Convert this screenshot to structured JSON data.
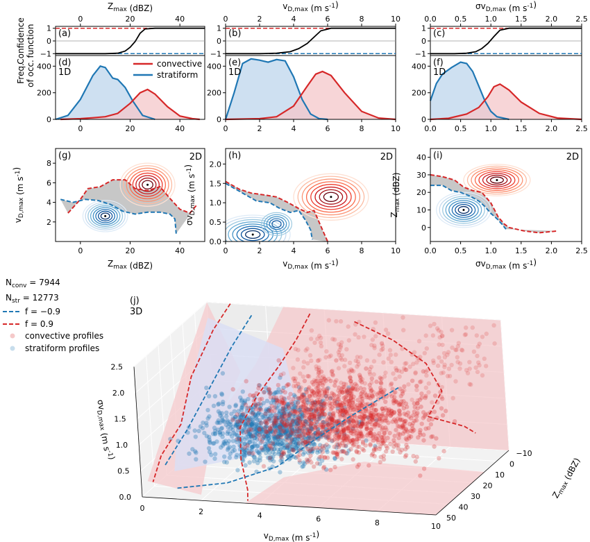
{
  "chart_data": [
    {
      "type": "line",
      "panel": "a",
      "label": "(a)",
      "xlabel_top": "Z_max (dBZ)",
      "xlim": [
        -10,
        50
      ],
      "xticks_top": [
        "0",
        "20",
        "40"
      ],
      "ylabel": "Confidence function",
      "ylim": [
        -1.15,
        1.15
      ],
      "yticks": [
        "1",
        "0",
        "−1"
      ],
      "series": [
        {
          "role": "confidence",
          "x": [
            -10,
            10,
            15,
            18,
            20,
            22,
            24,
            26,
            30,
            50
          ],
          "y": [
            -1,
            -1,
            -0.97,
            -0.8,
            -0.5,
            -0.05,
            0.6,
            0.95,
            1,
            1
          ]
        }
      ]
    },
    {
      "type": "line",
      "panel": "b",
      "label": "(b)",
      "xlabel_top": "v_D,max (m s^-1)",
      "xlim": [
        0,
        10
      ],
      "xticks_top": [
        "0",
        "2",
        "4",
        "6",
        "8",
        "10"
      ],
      "ylim": [
        -1.15,
        1.15
      ],
      "yticks": [
        "1",
        "0",
        "−1"
      ],
      "series": [
        {
          "role": "confidence",
          "x": [
            0,
            2,
            3,
            3.8,
            4.3,
            4.8,
            5.2,
            5.6,
            6.2,
            10
          ],
          "y": [
            -1,
            -1,
            -0.97,
            -0.85,
            -0.6,
            -0.2,
            0.3,
            0.8,
            1,
            1
          ]
        }
      ]
    },
    {
      "type": "line",
      "panel": "c",
      "label": "(c)",
      "xlabel_top": "σv_D,max (m s^-1)",
      "xlim": [
        0,
        2.5
      ],
      "xticks_top": [
        "0.0",
        "0.5",
        "1.0",
        "1.5",
        "2.0",
        "2.5"
      ],
      "ylim": [
        -1.15,
        1.15
      ],
      "yticks": [
        "1",
        "0",
        "−1"
      ],
      "series": [
        {
          "role": "confidence",
          "x": [
            0,
            0.4,
            0.6,
            0.75,
            0.85,
            0.95,
            1.05,
            1.15,
            1.3,
            2.5
          ],
          "y": [
            -1,
            -1,
            -0.97,
            -0.85,
            -0.6,
            -0.2,
            0.35,
            0.85,
            1,
            1
          ]
        }
      ]
    },
    {
      "type": "area",
      "panel": "d",
      "label": "(d)",
      "sublabel": "1D",
      "xlim": [
        -10,
        50
      ],
      "xticks": [
        "0",
        "20",
        "40"
      ],
      "ylabel": "Freq. of occ.",
      "ylim": [
        0,
        480
      ],
      "yticks": [
        "0",
        "200",
        "400"
      ],
      "legend_position": "top-right",
      "series": [
        {
          "name": "convective",
          "x": [
            -8,
            0,
            5,
            10,
            15,
            20,
            24,
            27,
            30,
            35,
            40,
            45,
            48
          ],
          "y": [
            0,
            5,
            12,
            20,
            45,
            120,
            200,
            225,
            190,
            95,
            25,
            5,
            0
          ]
        },
        {
          "name": "stratiform",
          "x": [
            -10,
            -5,
            0,
            5,
            8,
            10,
            13,
            15,
            18,
            21,
            25,
            30
          ],
          "y": [
            0,
            30,
            150,
            330,
            400,
            390,
            310,
            300,
            240,
            140,
            30,
            0
          ]
        }
      ]
    },
    {
      "type": "area",
      "panel": "e",
      "label": "(e)",
      "sublabel": "1D",
      "xlim": [
        0,
        10
      ],
      "xticks": [
        "0",
        "2",
        "4",
        "6",
        "8",
        "10"
      ],
      "ylim": [
        0,
        480
      ],
      "yticks": [
        "0",
        "200",
        "400"
      ],
      "series": [
        {
          "name": "convective",
          "x": [
            0,
            2,
            3,
            4,
            4.8,
            5.3,
            5.7,
            6.2,
            7,
            8,
            9,
            10
          ],
          "y": [
            0,
            5,
            20,
            100,
            250,
            340,
            360,
            330,
            200,
            60,
            10,
            0
          ]
        },
        {
          "name": "stratiform",
          "x": [
            0,
            0.5,
            1,
            1.5,
            2,
            2.5,
            3,
            3.5,
            4,
            4.5,
            5,
            5.5,
            6
          ],
          "y": [
            0,
            200,
            420,
            455,
            445,
            430,
            450,
            440,
            320,
            150,
            40,
            5,
            0
          ]
        }
      ]
    },
    {
      "type": "area",
      "panel": "f",
      "label": "(f)",
      "sublabel": "1D",
      "xlim": [
        0,
        2.5
      ],
      "xticks": [
        "0.0",
        "0.5",
        "1.0",
        "1.5",
        "2.0",
        "2.5"
      ],
      "ylim": [
        0,
        480
      ],
      "yticks": [
        "0",
        "200",
        "400"
      ],
      "series": [
        {
          "name": "convective",
          "x": [
            0,
            0.3,
            0.6,
            0.8,
            0.95,
            1.05,
            1.15,
            1.3,
            1.5,
            1.8,
            2.1,
            2.5
          ],
          "y": [
            0,
            8,
            40,
            90,
            170,
            245,
            265,
            220,
            130,
            45,
            10,
            0
          ]
        },
        {
          "name": "stratiform",
          "x": [
            0,
            0.1,
            0.2,
            0.35,
            0.5,
            0.6,
            0.7,
            0.8,
            0.9,
            1.0,
            1.1,
            1.3
          ],
          "y": [
            140,
            270,
            340,
            390,
            430,
            420,
            360,
            250,
            140,
            60,
            20,
            0
          ]
        }
      ]
    },
    {
      "type": "scatter",
      "panel": "g",
      "label": "(g)",
      "sublabel": "2D",
      "xlabel": "Z_max (dBZ)",
      "ylabel": "v_D,max (m s^-1)",
      "xlim": [
        -10,
        50
      ],
      "ylim": [
        0,
        9.5
      ],
      "xticks": [
        "0",
        "20",
        "40"
      ],
      "yticks": [
        "2",
        "4",
        "6",
        "8"
      ],
      "series": [
        {
          "role": "f = 0.9",
          "x": [
            -5,
            0,
            3,
            8,
            13,
            18,
            22,
            27,
            32,
            36,
            40,
            44,
            47
          ],
          "y": [
            2.9,
            4.3,
            5.4,
            5.6,
            6.3,
            6.3,
            5.4,
            5.2,
            5.6,
            4.4,
            3.3,
            2.9,
            3.8
          ]
        },
        {
          "role": "f = -0.9",
          "x": [
            -8,
            -3,
            2,
            7,
            12,
            17,
            22,
            27,
            32,
            36,
            38,
            38.5
          ],
          "y": [
            4.3,
            4.0,
            4.3,
            4.2,
            3.8,
            3.1,
            2.8,
            3.0,
            3.0,
            2.8,
            2.3,
            0.8
          ]
        }
      ]
    },
    {
      "type": "scatter",
      "panel": "h",
      "label": "(h)",
      "sublabel": "2D",
      "xlabel": "v_D,max (m s^-1)",
      "ylabel": "σv_D,max (m s^-1)",
      "xlim": [
        0,
        10
      ],
      "ylim": [
        0,
        2.4
      ],
      "xticks": [
        "0",
        "2",
        "4",
        "6",
        "8",
        "10"
      ],
      "yticks": [
        "0.0",
        "0.5",
        "1.0",
        "1.5",
        "2.0"
      ],
      "series": [
        {
          "role": "f = 0.9",
          "x": [
            0,
            0.8,
            1.5,
            2.3,
            3,
            3.7,
            4.3,
            4.8,
            5.2,
            5.4,
            5.7,
            6.0
          ],
          "y": [
            1.55,
            1.35,
            1.25,
            1.2,
            1.15,
            1.0,
            0.85,
            0.75,
            0.8,
            0.6,
            0.3,
            0.0
          ]
        },
        {
          "role": "f = -0.9",
          "x": [
            0,
            1,
            1.8,
            2.6,
            3.2,
            3.8,
            4.3,
            4.7,
            5.0,
            5.1
          ],
          "y": [
            1.5,
            1.25,
            1.05,
            1.0,
            0.85,
            0.75,
            0.8,
            0.55,
            0.3,
            0.05
          ]
        }
      ]
    },
    {
      "type": "scatter",
      "panel": "i",
      "label": "(i)",
      "sublabel": "2D",
      "xlabel": "σv_D,max (m s^-1)",
      "ylabel": "Z_max (dBZ)",
      "xlim": [
        0,
        2.5
      ],
      "ylim": [
        -8,
        45
      ],
      "xticks": [
        "0.0",
        "0.5",
        "1.0",
        "1.5",
        "2.0",
        "2.5"
      ],
      "yticks": [
        "0",
        "10",
        "20",
        "30",
        "40"
      ],
      "series": [
        {
          "role": "f = 0.9",
          "x": [
            0,
            0.2,
            0.4,
            0.55,
            0.7,
            0.85,
            1.0,
            1.12,
            1.22,
            1.3,
            1.55,
            1.8,
            2.1
          ],
          "y": [
            30,
            29,
            27,
            23,
            21,
            20,
            14,
            6,
            2,
            0,
            -2,
            -3,
            -2
          ]
        },
        {
          "role": "f = -0.9",
          "x": [
            0,
            0.2,
            0.35,
            0.5,
            0.65,
            0.8,
            0.9,
            1.0,
            1.1,
            1.18,
            1.25
          ],
          "y": [
            24,
            24,
            21,
            20,
            18,
            15,
            12,
            8,
            5,
            2,
            -1
          ]
        }
      ]
    },
    {
      "type": "scatter",
      "panel": "j",
      "label": "(j)",
      "sublabel": "3D",
      "xlabel": "v_D,max (m s^-1)",
      "ylabel": "Z_max (dBZ)",
      "zlabel": "σv_D,max (m s^-1)",
      "xlim": [
        0,
        10
      ],
      "ylim": [
        -10,
        50
      ],
      "zlim": [
        0,
        2.5
      ],
      "xticks": [
        "0",
        "2",
        "4",
        "6",
        "8",
        "10"
      ],
      "yticks": [
        "−10",
        "0",
        "10",
        "20",
        "30",
        "40",
        "50"
      ],
      "zticks": [
        "0.0",
        "0.5",
        "1.0",
        "1.5",
        "2.0",
        "2.5"
      ],
      "legend_position": "top-left",
      "series": [
        {
          "name": "convective profiles",
          "center": {
            "v": 6.0,
            "z": 28,
            "s": 1.25
          }
        },
        {
          "name": "stratiform profiles",
          "center": {
            "v": 3.0,
            "z": 12,
            "s": 0.6
          }
        }
      ]
    }
  ],
  "legend": {
    "n_conv": "N",
    "n_conv_sub": "conv",
    "n_conv_val": " = 7944",
    "n_str": "N",
    "n_str_sub": "str",
    "n_str_val": " = 12773",
    "f_neg": "f = −0.9",
    "f_pos": "f = 0.9",
    "conv_profiles": "convective profiles",
    "str_profiles": "stratiform profiles"
  },
  "labels_1d": {
    "convective": "convective",
    "stratiform": "stratiform"
  },
  "colors": {
    "convective": "#d62728",
    "stratiform": "#1f77b4",
    "conv_fill": "#f4c7c9",
    "strat_fill": "#c6dbef",
    "overlap": "#bdbdbd",
    "confidence": "#000000"
  }
}
